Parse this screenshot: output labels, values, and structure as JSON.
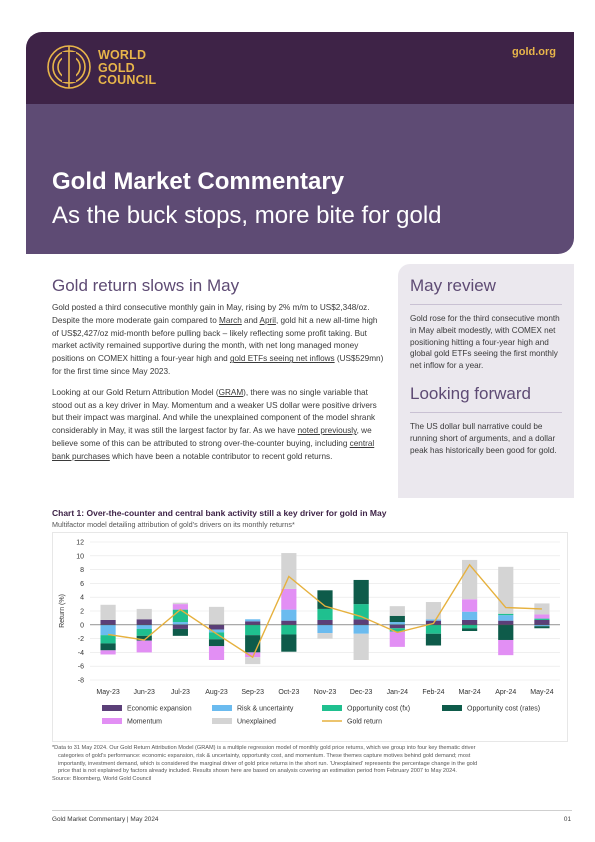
{
  "header": {
    "logo_lines": [
      "WORLD",
      "GOLD",
      "COUNCIL"
    ],
    "site": "gold.org"
  },
  "hero": {
    "title": "Gold Market Commentary",
    "subtitle": "As the buck stops, more bite for gold"
  },
  "main": {
    "heading": "Gold return slows in May",
    "para1": {
      "a": "Gold posted a third consecutive monthly gain in May, rising by 2% m/m to US$2,348/oz. Despite the more moderate gain compared to ",
      "link1": "March",
      "b": " and ",
      "link2": "April",
      "c": ", gold hit a new all-time high of US$2,427/oz mid-month before pulling back – likely reflecting some profit taking. But market activity remained supportive during the month, with net long managed money positions on COMEX hitting a four-year high and ",
      "link3": "gold ETFs seeing net inflows",
      "d": " (US$529mn) for the first time since May 2023."
    },
    "para2": {
      "a": "Looking at our Gold Return Attribution Model (",
      "link1": "GRAM",
      "b": "), there was no single variable that stood out as a key driver in May. Momentum and a weaker US dollar were positive drivers but their impact was marginal. And while the unexplained component of the model shrank considerably in May, it was still the largest factor by far. As we have ",
      "link2": "noted previously",
      "c": ", we believe some of this can be attributed to strong over-the-counter buying, including ",
      "link3": "central bank purchases",
      "d": " which have been a notable contributor to recent gold returns."
    }
  },
  "sidebar": {
    "review_heading": "May review",
    "review_text": "Gold rose for the third consecutive month in May albeit modestly, with COMEX net positioning hitting a four-year high and global gold ETFs seeing the first monthly net inflow for a year.",
    "forward_heading": "Looking forward",
    "forward_text": "The US dollar bull narrative could be running short of arguments, and a dollar peak has historically been good for gold."
  },
  "chart": {
    "title": "Chart 1: Over-the-counter and central bank activity still a key driver for gold in May",
    "subtitle": "Multifactor model detailing attribution of gold’s drivers on its monthly returns*"
  },
  "chart_data": {
    "type": "bar",
    "stacked": true,
    "categories": [
      "May-23",
      "Jun-23",
      "Jul-23",
      "Aug-23",
      "Sep-23",
      "Oct-23",
      "Nov-23",
      "Dec-23",
      "Jan-24",
      "Feb-24",
      "Mar-24",
      "Apr-24",
      "May-24"
    ],
    "ylabel": "Return (%)",
    "ylim": [
      -8,
      12
    ],
    "yticks": [
      12,
      10,
      8,
      6,
      4,
      2,
      0,
      -2,
      -4,
      -6,
      -8
    ],
    "legend_position": "bottom",
    "series": [
      {
        "name": "Economic expansion",
        "color": "#5b3f78",
        "values": [
          0.7,
          0.8,
          -0.6,
          -0.7,
          0.5,
          0.6,
          0.7,
          0.8,
          -0.5,
          0.6,
          0.7,
          0.6,
          0.7
        ]
      },
      {
        "name": "Risk & uncertainty",
        "color": "#6bbbef",
        "values": [
          -1.5,
          -0.6,
          0.4,
          -0.4,
          0.3,
          1.6,
          -1.2,
          -1.3,
          0.4,
          0.2,
          1.2,
          0.8,
          -0.2
        ]
      },
      {
        "name": "Opportunity cost (fx)",
        "color": "#1fc08f",
        "values": [
          -1.2,
          -1.0,
          1.8,
          -1.0,
          -1.5,
          -1.4,
          1.6,
          2.2,
          -0.5,
          -1.3,
          -0.5,
          0.2,
          0.2
        ]
      },
      {
        "name": "Opportunity cost (rates)",
        "color": "#0e5b4a",
        "values": [
          -1.0,
          -0.7,
          -1.0,
          -1.0,
          -2.5,
          -2.5,
          2.7,
          3.5,
          0.9,
          -1.7,
          -0.4,
          -2.2,
          -0.3
        ]
      },
      {
        "name": "Momentum",
        "color": "#e28ff4",
        "values": [
          -0.6,
          -1.7,
          0.8,
          -2.0,
          -0.7,
          3.0,
          0.0,
          0.0,
          -2.2,
          0.0,
          1.8,
          -2.2,
          0.6
        ]
      },
      {
        "name": "Unexplained",
        "color": "#d4d4d4",
        "values": [
          2.2,
          1.5,
          0.2,
          2.6,
          -1.0,
          5.2,
          -0.8,
          -3.8,
          1.4,
          2.5,
          5.7,
          6.8,
          1.6
        ]
      }
    ],
    "line": {
      "name": "Gold return",
      "color": "#e6b13e",
      "values": [
        -1.4,
        -2.2,
        2.2,
        -1.3,
        -4.7,
        7.0,
        2.7,
        1.2,
        -1.1,
        0.2,
        8.7,
        2.5,
        2.3
      ]
    }
  },
  "footnote": {
    "lines": [
      "*Data to 31 May 2024. Our Gold Return Attribution Model (GRAM) is a multiple regression model of monthly gold price returns, which we group into four key thematic driver",
      "categories of gold’s performance: economic expansion, risk & uncertainty, opportunity cost, and momentum. These themes capture motives behind gold demand; most",
      "importantly, investment demand, which is considered the marginal driver of gold price returns in the short run. ‘Unexplained’ represents the percentage change in the gold",
      "price that is not explained by factors already included. Results shown here are based on analysis covering an estimation period from February 2007 to May 2024.",
      "Source: Bloomberg, World Gold Council"
    ]
  },
  "footer": {
    "left": "Gold Market Commentary | May 2024",
    "page": "01"
  }
}
